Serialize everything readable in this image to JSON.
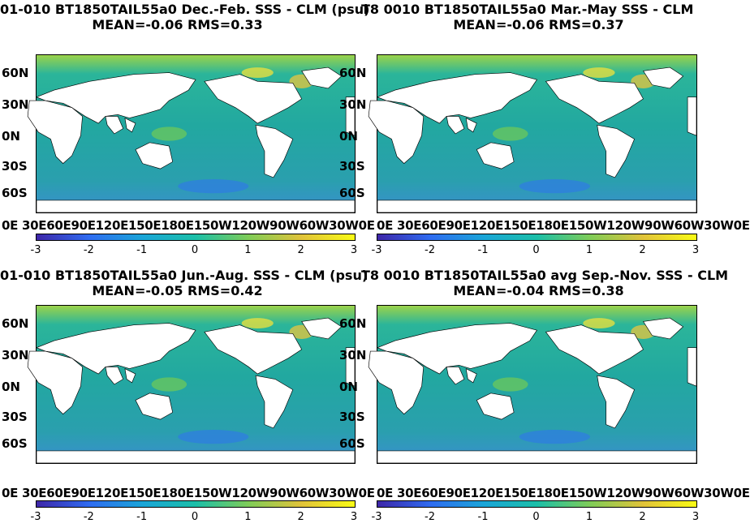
{
  "panels": [
    {
      "title_line1": "01-010 BT1850TAIL55a0  Dec.-Feb. SSS - CLM (psu)",
      "title_line2": "MEAN=-0.06   RMS=0.33"
    },
    {
      "title_line1": "T8 0010 BT1850TAIL55a0 Mar.-May SSS - CLM",
      "title_line2": "MEAN=-0.06   RMS=0.37"
    },
    {
      "title_line1": "01-010 BT1850TAIL55a0 Jun.-Aug. SSS - CLM (psu)",
      "title_line2": "MEAN=-0.05   RMS=0.42"
    },
    {
      "title_line1": "T8 0010 BT1850TAIL55a0 avg Sep.-Nov. SSS - CLM",
      "title_line2": "MEAN=-0.04   RMS=0.38"
    }
  ],
  "lat_ticks": [
    "60N",
    "30N",
    "0N",
    "30S",
    "60S"
  ],
  "lon_tick_text": "0E 30E60E90E120E150E180E150W120W90W60W30W0E",
  "colorbar": {
    "ticks": [
      "-3",
      "-2",
      "-1",
      "0",
      "1",
      "2",
      "3"
    ],
    "colors": [
      "#3e26a8",
      "#2f6cf1",
      "#1aa5d8",
      "#1bbfa8",
      "#7fcc58",
      "#e1c33a",
      "#f9fb15"
    ]
  }
}
